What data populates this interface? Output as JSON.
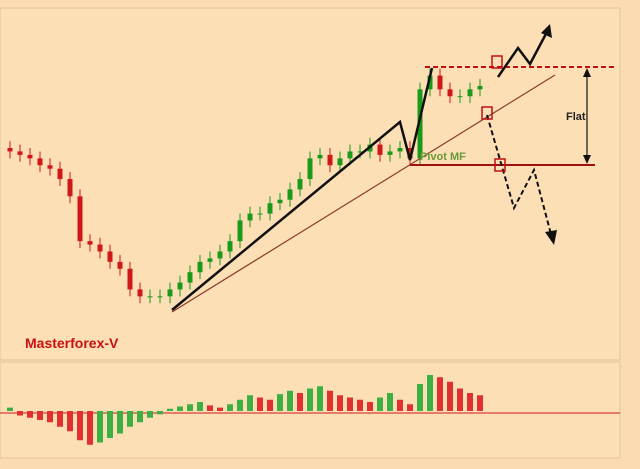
{
  "chart_data": [
    {
      "type": "candlestick",
      "title": "Masterforex-V",
      "annotations": [
        "Flat",
        "Pivot MF"
      ],
      "ylim": [
        0,
        100
      ],
      "up_color": "#1a9a1a",
      "down_color": "#d01818",
      "open": [
        60,
        59,
        58,
        57,
        55,
        54,
        51,
        46,
        33,
        32,
        30,
        27,
        25,
        19,
        17,
        17,
        17,
        19,
        21,
        24,
        27,
        28,
        30,
        33,
        39,
        41,
        41,
        44,
        45,
        48,
        51,
        57,
        58,
        55,
        57,
        59,
        59,
        61,
        58,
        59,
        60,
        57,
        77,
        81,
        77,
        75,
        75,
        77
      ],
      "high": [
        62,
        61,
        60,
        59,
        57,
        56,
        53,
        48,
        35,
        34,
        32,
        29,
        27,
        21,
        19,
        19,
        21,
        23,
        26,
        29,
        30,
        32,
        35,
        41,
        43,
        43,
        46,
        47,
        50,
        53,
        59,
        60,
        60,
        59,
        61,
        61,
        63,
        63,
        61,
        62,
        62,
        79,
        83,
        83,
        79,
        77,
        79,
        80
      ],
      "low": [
        57,
        56,
        55,
        53,
        52,
        49,
        44,
        31,
        30,
        28,
        25,
        23,
        17,
        15,
        15,
        15,
        15,
        17,
        19,
        22,
        25,
        26,
        28,
        31,
        37,
        39,
        39,
        42,
        43,
        46,
        49,
        55,
        53,
        53,
        55,
        57,
        57,
        56,
        56,
        57,
        55,
        55,
        75,
        75,
        73,
        73,
        73,
        75
      ],
      "close": [
        59,
        58,
        57,
        55,
        54,
        51,
        46,
        33,
        32,
        30,
        27,
        25,
        19,
        17,
        17,
        17,
        19,
        21,
        24,
        27,
        28,
        30,
        33,
        39,
        41,
        41,
        44,
        45,
        48,
        51,
        57,
        58,
        55,
        57,
        59,
        59,
        61,
        58,
        59,
        60,
        57,
        77,
        81,
        77,
        75,
        75,
        77,
        78
      ]
    },
    {
      "type": "bar",
      "ylim": [
        -40,
        40
      ],
      "up_color": "#3cb043",
      "down_color": "#e03030",
      "values": [
        3,
        -4,
        -6,
        -8,
        -10,
        -14,
        -18,
        -26,
        -30,
        -28,
        -24,
        -20,
        -14,
        -10,
        -6,
        -3,
        2,
        4,
        6,
        8,
        5,
        3,
        6,
        10,
        14,
        12,
        10,
        15,
        18,
        16,
        20,
        22,
        18,
        14,
        12,
        10,
        8,
        12,
        16,
        10,
        6,
        24,
        32,
        30,
        26,
        20,
        16,
        14
      ]
    }
  ]
}
